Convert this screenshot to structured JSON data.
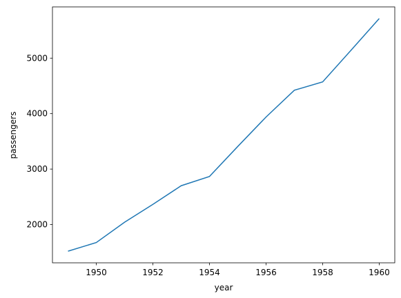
{
  "chart_data": {
    "type": "line",
    "x_label": "year",
    "y_label": "passengers",
    "x": [
      1949,
      1950,
      1951,
      1952,
      1953,
      1954,
      1955,
      1956,
      1957,
      1958,
      1959,
      1960
    ],
    "series": [
      {
        "color": "#1f77b4",
        "values": [
          1520,
          1676,
          2042,
          2364,
          2700,
          2867,
          3408,
          3939,
          4421,
          4572,
          5140,
          5714
        ]
      }
    ],
    "xlim": [
      1948.45,
      1960.55
    ],
    "xticks": [
      1950,
      1952,
      1954,
      1956,
      1958,
      1960
    ],
    "ylim": [
      1310.3,
      5923.7
    ],
    "yticks": [
      2000,
      3000,
      4000,
      5000
    ],
    "grid": false
  }
}
